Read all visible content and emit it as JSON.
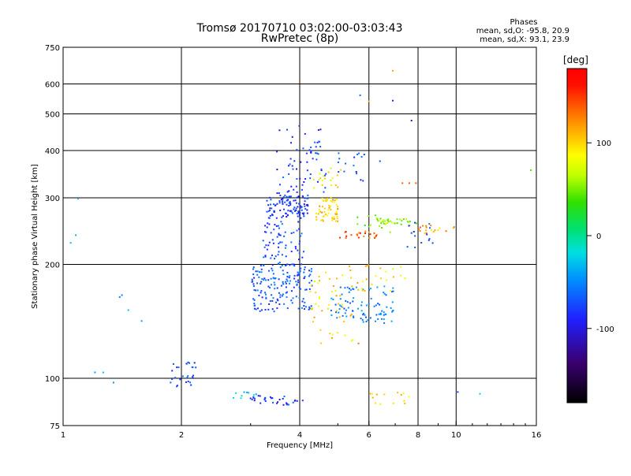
{
  "chart_data": {
    "type": "scatter",
    "title": "Tromsø 20170710 03:02:00-03:03:43",
    "subtitle": "RwPretec (8p)",
    "xlabel": "Frequency [MHz]",
    "ylabel": "Stationary phase Virtual Height [km]",
    "x_scale": "log",
    "y_scale": "log",
    "xlim": [
      1,
      16
    ],
    "ylim": [
      75,
      750
    ],
    "x_ticks": [
      1,
      2,
      4,
      6,
      8,
      10,
      16
    ],
    "x_tick_labels": [
      "1",
      "2",
      "4",
      "6",
      "8",
      "10",
      "16"
    ],
    "y_ticks": [
      75,
      100,
      200,
      300,
      400,
      500,
      600,
      750
    ],
    "y_tick_labels": [
      "75",
      "100",
      "200",
      "300",
      "400",
      "500",
      "600",
      "750"
    ],
    "grid": true,
    "phase_info": {
      "heading": "Phases",
      "line_o": "mean, sd,O: -95.8, 20.9",
      "line_x": "mean, sd,X:  93.1, 23.9"
    },
    "colorbar": {
      "unit_label": "[deg]",
      "range": [
        -180,
        180
      ],
      "ticks": [
        100,
        0,
        -100
      ],
      "tick_labels": [
        "100",
        "0",
        "-100"
      ]
    },
    "clusters": [
      {
        "f": [
          3.0,
          4.3
        ],
        "h": [
          150,
          200
        ],
        "phase": -95,
        "n": 170
      },
      {
        "f": [
          3.3,
          4.2
        ],
        "h": [
          265,
          305
        ],
        "phase": -110,
        "n": 110
      },
      {
        "f": [
          3.2,
          4.1
        ],
        "h": [
          200,
          260
        ],
        "phase": -100,
        "n": 70
      },
      {
        "f": [
          3.5,
          4.7
        ],
        "h": [
          305,
          470
        ],
        "phase": -110,
        "n": 65
      },
      {
        "f": [
          4.4,
          5.0
        ],
        "h": [
          260,
          300
        ],
        "phase": 105,
        "n": 60
      },
      {
        "f": [
          4.3,
          5.2
        ],
        "h": [
          310,
          360
        ],
        "phase": 90,
        "n": 18
      },
      {
        "f": [
          4.2,
          5.5
        ],
        "h": [
          140,
          200
        ],
        "phase": 100,
        "n": 40
      },
      {
        "f": [
          4.8,
          7.0
        ],
        "h": [
          140,
          175
        ],
        "phase": -75,
        "n": 90
      },
      {
        "f": [
          5.0,
          6.3
        ],
        "h": [
          235,
          245
        ],
        "phase": 140,
        "n": 22
      },
      {
        "f": [
          6.2,
          7.5
        ],
        "h": [
          255,
          265
        ],
        "phase": 60,
        "n": 28
      },
      {
        "f": [
          5.5,
          8.0
        ],
        "h": [
          240,
          270
        ],
        "phase": 50,
        "n": 18
      },
      {
        "f": [
          8.0,
          10.0
        ],
        "h": [
          240,
          255
        ],
        "phase": 120,
        "n": 18
      },
      {
        "f": [
          7.5,
          9.5
        ],
        "h": [
          220,
          260
        ],
        "phase": -100,
        "n": 14
      },
      {
        "f": [
          5.0,
          6.0
        ],
        "h": [
          330,
          400
        ],
        "phase": -100,
        "n": 16
      },
      {
        "f": [
          5.6,
          7.5
        ],
        "h": [
          170,
          200
        ],
        "phase": 100,
        "n": 22
      },
      {
        "f": [
          4.5,
          5.8
        ],
        "h": [
          120,
          135
        ],
        "phase": 110,
        "n": 10
      },
      {
        "f": [
          1.85,
          2.2
        ],
        "h": [
          95,
          112
        ],
        "phase": -100,
        "n": 28
      },
      {
        "f": [
          3.0,
          4.1
        ],
        "h": [
          85,
          90
        ],
        "phase": -110,
        "n": 35
      },
      {
        "f": [
          6.0,
          7.8
        ],
        "h": [
          85,
          92
        ],
        "phase": 100,
        "n": 14
      },
      {
        "f": [
          2.7,
          3.1
        ],
        "h": [
          88,
          92
        ],
        "phase": -30,
        "n": 10
      },
      {
        "f": [
          1.0,
          1.6
        ],
        "h": [
          90,
          340
        ],
        "phase": -60,
        "n": 10
      }
    ],
    "notes_x": [
      {
        "f": 7.3,
        "h": 328,
        "phase": 140
      },
      {
        "f": 7.6,
        "h": 328,
        "phase": 140
      },
      {
        "f": 7.9,
        "h": 328,
        "phase": 140
      },
      {
        "f": 4.0,
        "h": 610,
        "phase": 140
      },
      {
        "f": 6.9,
        "h": 650,
        "phase": 120
      },
      {
        "f": 6.9,
        "h": 542,
        "phase": -120
      },
      {
        "f": 7.7,
        "h": 480,
        "phase": -130
      },
      {
        "f": 6.0,
        "h": 540,
        "phase": 110
      },
      {
        "f": 6.4,
        "h": 375,
        "phase": -100
      },
      {
        "f": 5.7,
        "h": 560,
        "phase": -90
      },
      {
        "f": 15.5,
        "h": 355,
        "phase": 40
      },
      {
        "f": 10.1,
        "h": 92,
        "phase": -110
      },
      {
        "f": 11.5,
        "h": 91,
        "phase": -30
      }
    ]
  }
}
